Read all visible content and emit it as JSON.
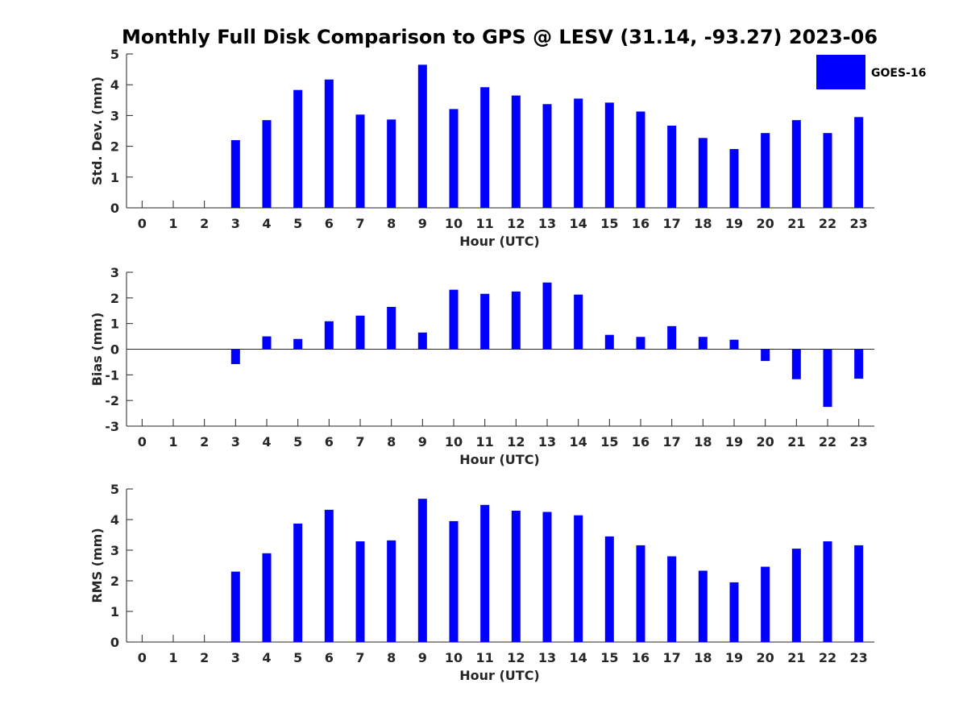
{
  "chart_data": {
    "title": "Monthly Full Disk Comparison to GPS @ LESV (31.14, -93.27) 2023-06",
    "legend": {
      "label": "GOES-16",
      "color": "#0000ff",
      "placement": "top-right"
    },
    "panels": [
      {
        "type": "bar",
        "xlabel": "Hour (UTC)",
        "ylabel": "Std. Dev. (mm)",
        "ylim": [
          0,
          5
        ],
        "yticks": [
          "0",
          "1",
          "2",
          "3",
          "4",
          "5"
        ],
        "categories": [
          "0",
          "1",
          "2",
          "3",
          "4",
          "5",
          "6",
          "7",
          "8",
          "9",
          "10",
          "11",
          "12",
          "13",
          "14",
          "15",
          "16",
          "17",
          "18",
          "19",
          "20",
          "21",
          "22",
          "23"
        ],
        "series": [
          {
            "name": "GOES-16",
            "values": [
              null,
              null,
              null,
              2.2,
              2.85,
              3.83,
              4.17,
              3.03,
              2.87,
              4.65,
              3.21,
              3.92,
              3.65,
              3.37,
              3.55,
              3.42,
              3.13,
              2.67,
              2.27,
              1.91,
              2.43,
              2.85,
              2.43,
              2.95
            ]
          }
        ]
      },
      {
        "type": "bar",
        "xlabel": "Hour (UTC)",
        "ylabel": "Bias (mm)",
        "ylim": [
          -3,
          3
        ],
        "yticks": [
          "-3",
          "-2",
          "-1",
          "0",
          "1",
          "2",
          "3"
        ],
        "categories": [
          "0",
          "1",
          "2",
          "3",
          "4",
          "5",
          "6",
          "7",
          "8",
          "9",
          "10",
          "11",
          "12",
          "13",
          "14",
          "15",
          "16",
          "17",
          "18",
          "19",
          "20",
          "21",
          "22",
          "23"
        ],
        "series": [
          {
            "name": "GOES-16",
            "values": [
              null,
              null,
              null,
              -0.58,
              0.5,
              0.4,
              1.09,
              1.31,
              1.65,
              0.65,
              2.32,
              2.16,
              2.25,
              2.6,
              2.13,
              0.56,
              0.48,
              0.9,
              0.48,
              0.37,
              -0.46,
              -1.17,
              -2.25,
              -1.15
            ]
          }
        ]
      },
      {
        "type": "bar",
        "xlabel": "Hour (UTC)",
        "ylabel": "RMS (mm)",
        "ylim": [
          0,
          5
        ],
        "yticks": [
          "0",
          "1",
          "2",
          "3",
          "4",
          "5"
        ],
        "categories": [
          "0",
          "1",
          "2",
          "3",
          "4",
          "5",
          "6",
          "7",
          "8",
          "9",
          "10",
          "11",
          "12",
          "13",
          "14",
          "15",
          "16",
          "17",
          "18",
          "19",
          "20",
          "21",
          "22",
          "23"
        ],
        "series": [
          {
            "name": "GOES-16",
            "values": [
              null,
              null,
              null,
              2.3,
              2.9,
              3.87,
              4.32,
              3.29,
              3.32,
              4.68,
              3.95,
              4.48,
              4.29,
              4.25,
              4.14,
              3.45,
              3.16,
              2.8,
              2.33,
              1.95,
              2.46,
              3.05,
              3.29,
              3.16
            ]
          }
        ]
      }
    ]
  }
}
